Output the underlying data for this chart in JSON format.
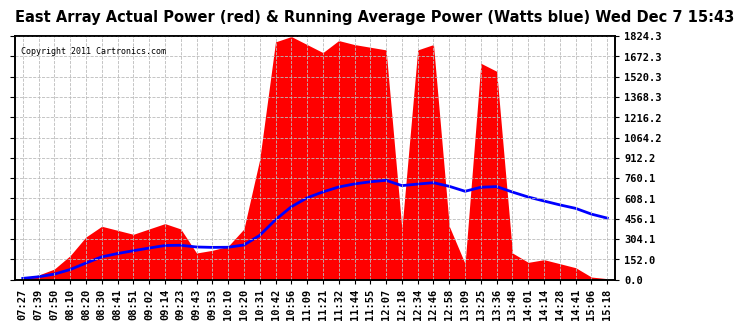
{
  "title": "East Array Actual Power (red) & Running Average Power (Watts blue) Wed Dec 7 15:43",
  "copyright": "Copyright 2011 Cartronics.com",
  "ylabel_right": [
    "0.0",
    "152.0",
    "304.1",
    "456.1",
    "608.1",
    "760.1",
    "912.2",
    "1064.2",
    "1216.2",
    "1368.3",
    "1520.3",
    "1672.3",
    "1824.3"
  ],
  "ymax": 1824.3,
  "ymin": 0.0,
  "yticks": [
    0.0,
    152.0,
    304.1,
    456.1,
    608.1,
    760.1,
    912.2,
    1064.2,
    1216.2,
    1368.3,
    1520.3,
    1672.3,
    1824.3
  ],
  "xtick_labels": [
    "07:27",
    "07:39",
    "07:50",
    "08:10",
    "08:20",
    "08:30",
    "08:41",
    "08:51",
    "09:02",
    "09:14",
    "09:23",
    "09:43",
    "09:53",
    "10:10",
    "10:20",
    "10:31",
    "10:42",
    "10:56",
    "11:09",
    "11:21",
    "11:32",
    "11:44",
    "11:55",
    "12:07",
    "12:18",
    "12:34",
    "12:46",
    "12:58",
    "13:09",
    "13:25",
    "13:36",
    "13:48",
    "14:01",
    "14:14",
    "14:28",
    "14:41",
    "15:06",
    "15:18"
  ],
  "power_values": [
    10,
    35,
    80,
    180,
    320,
    400,
    370,
    340,
    380,
    420,
    380,
    200,
    220,
    250,
    380,
    900,
    1780,
    1820,
    1760,
    1700,
    1790,
    1760,
    1740,
    1720,
    380,
    1720,
    1760,
    400,
    120,
    1620,
    1560,
    200,
    130,
    150,
    120,
    90,
    20,
    8
  ],
  "running_avg": [
    10,
    22,
    42,
    76,
    125,
    171,
    196,
    217,
    237,
    256,
    258,
    245,
    242,
    243,
    260,
    332,
    449,
    546,
    613,
    657,
    694,
    717,
    733,
    744,
    704,
    716,
    726,
    699,
    662,
    692,
    697,
    656,
    619,
    589,
    560,
    534,
    491,
    461
  ],
  "fill_color": "red",
  "line_color": "blue",
  "background_color": "#ffffff",
  "grid_color": "#bbbbbb",
  "title_fontsize": 10.5,
  "tick_fontsize": 7.5,
  "line_width": 2.0
}
